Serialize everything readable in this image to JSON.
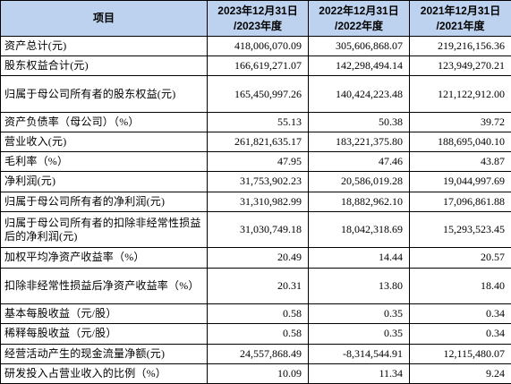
{
  "header": {
    "item": "项目",
    "col_2023_line1": "2023年12月31日",
    "col_2023_line2": "/2023年度",
    "col_2022_line1": "2022年12月31日",
    "col_2022_line2": "/2022年度",
    "col_2021_line1": "2021年12月31日",
    "col_2021_line2": "/2021年度"
  },
  "rows": [
    {
      "label": "资产总计(元)",
      "v2023": "418,006,070.09",
      "v2022": "305,606,868.07",
      "v2021": "219,216,156.36"
    },
    {
      "label": "股东权益合计(元)",
      "v2023": "166,619,271.07",
      "v2022": "142,298,494.14",
      "v2021": "123,949,270.21"
    },
    {
      "label": "归属于母公司所有者的股东权益(元)",
      "v2023": "165,450,997.26",
      "v2022": "140,424,223.48",
      "v2021": "121,122,912.00"
    },
    {
      "label": "资产负债率（母公司）（%）",
      "v2023": "55.13",
      "v2022": "50.38",
      "v2021": "39.72"
    },
    {
      "label": "营业收入(元)",
      "v2023": "261,821,635.17",
      "v2022": "183,221,375.80",
      "v2021": "188,695,040.10"
    },
    {
      "label": "毛利率（%）",
      "v2023": "47.95",
      "v2022": "47.46",
      "v2021": "43.87"
    },
    {
      "label": "净利润(元)",
      "v2023": "31,753,902.23",
      "v2022": "20,586,019.28",
      "v2021": "19,044,997.69"
    },
    {
      "label": "归属于母公司所有者的净利润(元)",
      "v2023": "31,310,982.99",
      "v2022": "18,882,962.10",
      "v2021": "17,096,861.88"
    },
    {
      "label": "归属于母公司所有者的扣除非经常性损益后的净利润(元)",
      "v2023": "31,030,749.18",
      "v2022": "18,042,318.69",
      "v2021": "15,293,523.45"
    },
    {
      "label": "加权平均净资产收益率（%）",
      "v2023": "20.49",
      "v2022": "14.44",
      "v2021": "20.57"
    },
    {
      "label": "扣除非经常性损益后净资产收益率（%）",
      "v2023": "20.31",
      "v2022": "13.80",
      "v2021": "18.40"
    },
    {
      "label": "基本每股收益（元/股）",
      "v2023": "0.58",
      "v2022": "0.35",
      "v2021": "0.34"
    },
    {
      "label": "稀释每股收益（元/股）",
      "v2023": "0.58",
      "v2022": "0.35",
      "v2021": "0.34"
    },
    {
      "label": "经营活动产生的现金流量净额(元)",
      "v2023": "24,557,868.49",
      "v2022": "-8,314,544.91",
      "v2021": "12,115,480.07"
    },
    {
      "label": "研发投入占营业收入的比例（%）",
      "v2023": "10.09",
      "v2022": "11.34",
      "v2021": "9.24"
    }
  ],
  "colors": {
    "header_bg": "#bcd2ee",
    "border": "#000000"
  }
}
